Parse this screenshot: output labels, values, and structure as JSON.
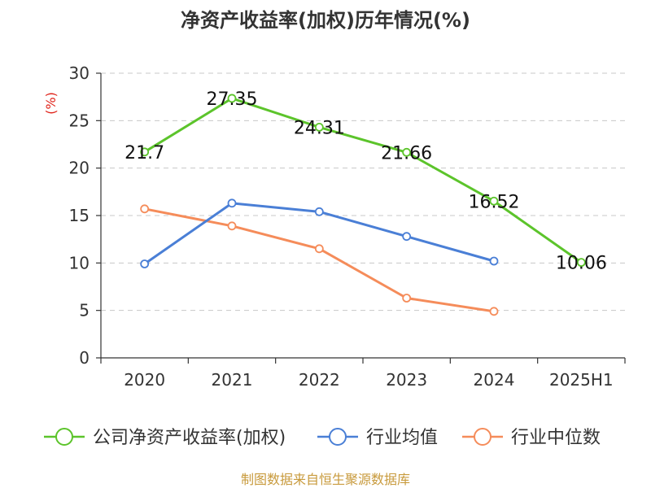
{
  "chart_data": {
    "type": "line",
    "title": "净资产收益率(加权)历年情况(%)",
    "ylabel": "(%)",
    "categories": [
      "2020",
      "2021",
      "2022",
      "2023",
      "2024",
      "2025H1"
    ],
    "yticks": [
      "0",
      "5",
      "10",
      "15",
      "20",
      "25",
      "30"
    ],
    "ylim": [
      0,
      30
    ],
    "grid": true,
    "legend_position": "bottom",
    "series": [
      {
        "name": "公司净资产收益率(加权)",
        "color": "#5cc42b",
        "values": [
          21.7,
          27.35,
          24.31,
          21.66,
          16.52,
          10.06
        ],
        "labels": [
          "21.7",
          "27.35",
          "24.31",
          "21.66",
          "16.52",
          "10.06"
        ]
      },
      {
        "name": "行业均值",
        "color": "#4a7fd6",
        "values": [
          9.9,
          16.3,
          15.4,
          12.8,
          10.2,
          null
        ]
      },
      {
        "name": "行业中位数",
        "color": "#f58c5a",
        "values": [
          15.7,
          13.9,
          11.5,
          6.3,
          4.9,
          null
        ]
      }
    ]
  },
  "source": "制图数据来自恒生聚源数据库"
}
